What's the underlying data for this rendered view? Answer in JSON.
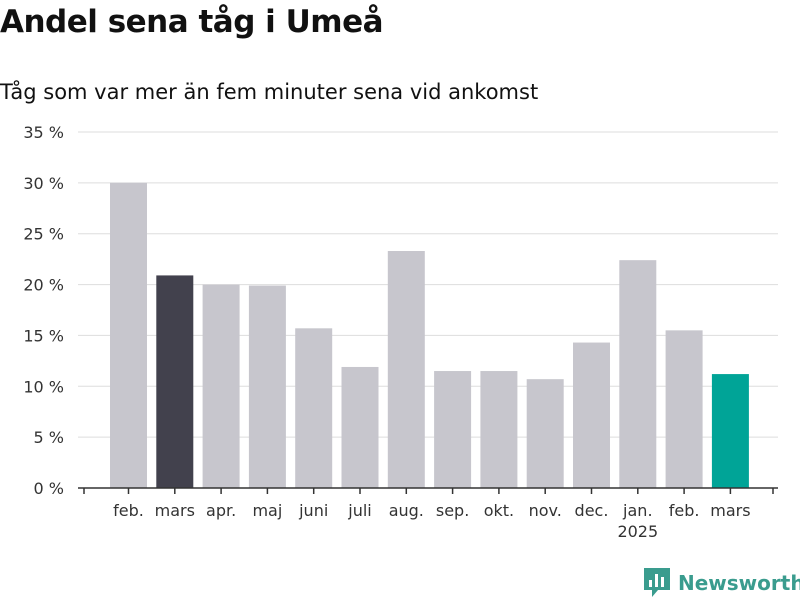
{
  "title": "Andel sena tåg i Umeå",
  "subtitle": "Tåg som var mer än fem minuter sena vid ankomst",
  "brand": "Newsworthy",
  "colors": {
    "default_bar": "#c7c6cd",
    "previous_year_bar": "#42414d",
    "current_bar": "#00a497",
    "grid": "#dddddd",
    "axis": "#333333",
    "brand": "#3a9c8e"
  },
  "chart_data": {
    "type": "bar",
    "title": "Andel sena tåg i Umeå",
    "subtitle": "Tåg som var mer än fem minuter sena vid ankomst",
    "ylim": [
      0,
      35
    ],
    "yticks": [
      0,
      5,
      10,
      15,
      20,
      25,
      30,
      35
    ],
    "ytick_labels": [
      "0 %",
      "5 %",
      "10 %",
      "15 %",
      "20 %",
      "25 %",
      "30 %",
      "35 %"
    ],
    "grid": true,
    "categories": [
      "feb.",
      "mars",
      "apr.",
      "maj",
      "juni",
      "juli",
      "aug.",
      "sep.",
      "okt.",
      "nov.",
      "dec.",
      "jan.",
      "feb.",
      "mars"
    ],
    "category_sublabels": [
      "",
      "",
      "",
      "",
      "",
      "",
      "",
      "",
      "",
      "",
      "",
      "2025",
      "",
      ""
    ],
    "values": [
      30.0,
      20.9,
      20.0,
      19.9,
      15.7,
      11.9,
      23.3,
      11.5,
      11.5,
      10.7,
      14.3,
      22.4,
      15.5,
      11.2
    ],
    "highlights": [
      "default",
      "previous_year",
      "default",
      "default",
      "default",
      "default",
      "default",
      "default",
      "default",
      "default",
      "default",
      "default",
      "default",
      "current"
    ]
  }
}
